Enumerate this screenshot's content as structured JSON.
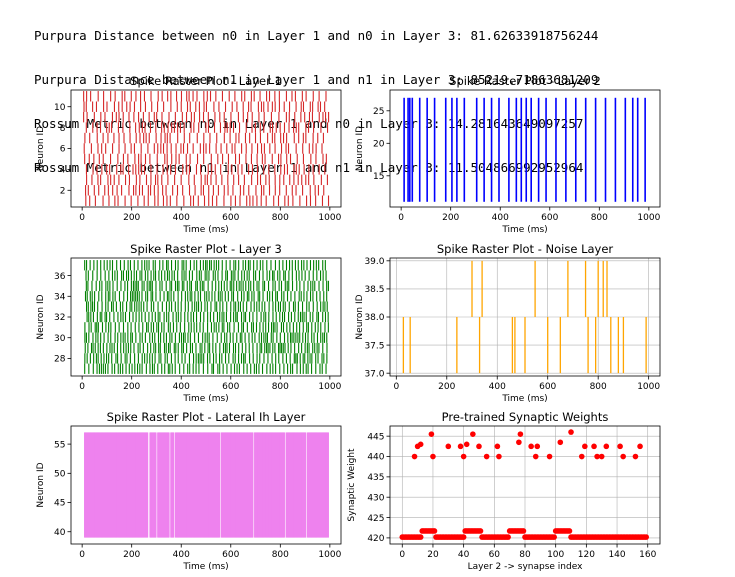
{
  "log_lines": [
    "Purpura Distance between n0 in Layer 1 and n0 in Layer 3: 81.62633918756244",
    "Purpura Distance between n1 in Layer 1 and n1 in Layer 3: 85219.71863681209",
    "Rossum Metric between n0 in Layer 1 and n0 in Layer 3: 14.281643649097257",
    "Rossum Metric between n1 in Layer 1 and n1 in Layer 3: 11.504866992952964"
  ],
  "chart_data": [
    {
      "type": "scatter",
      "title": "Spike Raster Plot - Layer 1",
      "xlabel": "Time (ms)",
      "ylabel": "Neuron ID",
      "color": "#d62728",
      "grid": false,
      "xlim": [
        -45,
        1045
      ],
      "ylim": [
        0.4,
        11.6
      ],
      "xticks": [
        0,
        200,
        400,
        600,
        800,
        1000
      ],
      "yticks": [
        2,
        4,
        6,
        8,
        10
      ],
      "neurons": [
        1,
        2,
        3,
        4,
        5,
        6,
        7,
        8,
        9,
        10,
        11
      ],
      "spike_time_range": [
        5,
        995
      ],
      "mark": "vertical bar per spike, one row per neuron"
    },
    {
      "type": "scatter",
      "title": "Spike Raster Plot - Layer 2",
      "xlabel": "Time (ms)",
      "ylabel": "Neuron ID",
      "color": "#0000ff",
      "grid": false,
      "xlim": [
        -45,
        1045
      ],
      "ylim": [
        10.2,
        28.2
      ],
      "xticks": [
        0,
        200,
        400,
        600,
        800,
        1000
      ],
      "yticks": [
        15,
        20,
        25
      ],
      "spike_times": [
        12,
        28,
        35,
        45,
        75,
        105,
        135,
        180,
        205,
        225,
        255,
        305,
        335,
        365,
        395,
        435,
        465,
        485,
        505,
        525,
        555,
        585,
        625,
        665,
        705,
        745,
        785,
        825,
        865,
        905,
        935,
        955,
        985
      ],
      "mark": "vertical line spanning neurons 11-27 at each spike time"
    },
    {
      "type": "scatter",
      "title": "Spike Raster Plot - Layer 3",
      "xlabel": "Time (ms)",
      "ylabel": "Neuron ID",
      "color": "#008000",
      "grid": false,
      "xlim": [
        -45,
        1045
      ],
      "ylim": [
        26.3,
        37.7
      ],
      "xticks": [
        0,
        200,
        400,
        600,
        800,
        1000
      ],
      "yticks": [
        28,
        30,
        32,
        34,
        36
      ],
      "neurons": [
        27,
        28,
        29,
        30,
        31,
        32,
        33,
        34,
        35,
        36,
        37
      ],
      "spike_time_range": [
        10,
        995
      ],
      "mark": "vertical bar per spike, dense"
    },
    {
      "type": "scatter",
      "title": "Spike Raster Plot - Noise Layer",
      "xlabel": "Time (ms)",
      "ylabel": "Neuron ID",
      "color": "#ffa500",
      "grid": true,
      "xlim": [
        -25,
        1045
      ],
      "ylim": [
        36.95,
        39.05
      ],
      "xticks": [
        0,
        200,
        400,
        600,
        800,
        1000
      ],
      "yticks": [
        37.0,
        37.5,
        38.0,
        38.5,
        39.0
      ],
      "ytick_labels": [
        "37.0",
        "37.5",
        "38.0",
        "38.5",
        "39.0"
      ],
      "spikes_neuron_37": [
        28,
        55,
        240,
        330,
        460,
        470,
        510,
        600,
        650,
        760,
        790,
        850,
        880,
        900,
        990
      ],
      "spikes_neuron_38": [
        300,
        340,
        550,
        680,
        750,
        800,
        820,
        835
      ],
      "mark": "vertical line from neuron 37 to 38 or 38 to 39"
    },
    {
      "type": "scatter",
      "title": "Spike Raster Plot - Lateral Ih Layer",
      "xlabel": "Time (ms)",
      "ylabel": "Neuron ID",
      "color": "#ee82ee",
      "grid": false,
      "xlim": [
        -45,
        1045
      ],
      "ylim": [
        37.9,
        58.1
      ],
      "xticks": [
        0,
        200,
        400,
        600,
        800,
        1000
      ],
      "yticks": [
        40,
        45,
        50,
        55
      ],
      "neuron_span": [
        39,
        57
      ],
      "spike_time_range": [
        10,
        995
      ],
      "gaps_ms": [
        [
          266,
          272
        ],
        [
          300,
          304
        ],
        [
          352,
          356
        ],
        [
          372,
          376
        ],
        [
          555,
          560
        ],
        [
          690,
          696
        ],
        [
          818,
          823
        ],
        [
          905,
          909
        ]
      ],
      "mark": "dense vertical lines spanning neurons 39-57"
    },
    {
      "type": "scatter",
      "title": "Pre-trained Synaptic Weights",
      "xlabel": "Layer 2 -> synapse index",
      "ylabel": "Synaptic Weight",
      "color": "#ff0000",
      "grid": true,
      "xlim": [
        -8,
        168
      ],
      "ylim": [
        418.5,
        447.5
      ],
      "xticks": [
        0,
        20,
        40,
        60,
        80,
        100,
        120,
        140,
        160
      ],
      "yticks": [
        420,
        425,
        430,
        435,
        440,
        445
      ],
      "high_points": [
        [
          8,
          440
        ],
        [
          10,
          442.5
        ],
        [
          12,
          443
        ],
        [
          19,
          445.5
        ],
        [
          20,
          440
        ],
        [
          30,
          442.5
        ],
        [
          38,
          442.5
        ],
        [
          40,
          440
        ],
        [
          42,
          443
        ],
        [
          46,
          445.5
        ],
        [
          50,
          442.5
        ],
        [
          55,
          440
        ],
        [
          62,
          442.5
        ],
        [
          63,
          440
        ],
        [
          76,
          443.5
        ],
        [
          77,
          445.5
        ],
        [
          84,
          442.5
        ],
        [
          87,
          440
        ],
        [
          88,
          442.5
        ],
        [
          96,
          440
        ],
        [
          103,
          443.5
        ],
        [
          110,
          446
        ],
        [
          117,
          440
        ],
        [
          119,
          442.5
        ],
        [
          125,
          442.5
        ],
        [
          127,
          440
        ],
        [
          130,
          440
        ],
        [
          133,
          442.5
        ],
        [
          142,
          442.5
        ],
        [
          144,
          440
        ],
        [
          152,
          440
        ],
        [
          155,
          442.5
        ]
      ],
      "low_value_main": 420.2,
      "low_index_range": [
        0,
        159
      ],
      "mid_segments": [
        [
          13,
          21,
          421.7
        ],
        [
          41,
          51,
          421.7
        ],
        [
          70,
          79,
          421.7
        ],
        [
          100,
          109,
          421.7
        ]
      ]
    }
  ]
}
